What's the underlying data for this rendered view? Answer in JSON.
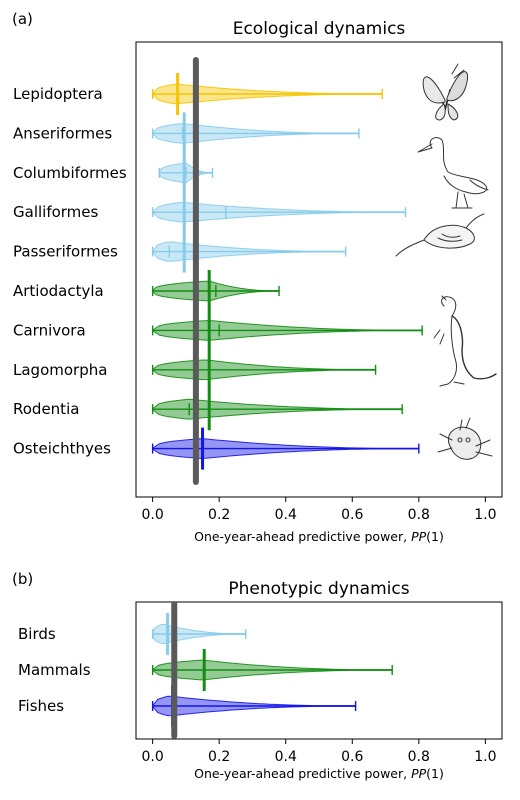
{
  "colors": {
    "yellow": "#f5c400",
    "lightblue": "#87cbea",
    "green": "#128c12",
    "blue": "#1414e6",
    "reference": "#5a5a5a"
  },
  "chart_data": [
    {
      "panel": "(a)",
      "type": "violin",
      "title": "Ecological dynamics",
      "xlabel": "One-year-ahead predictive power,",
      "xlabel_symbol": "PP(1)",
      "xlim": [
        -0.05,
        1.05
      ],
      "xticks": [
        0.0,
        0.2,
        0.4,
        0.6,
        0.8,
        1.0
      ],
      "xtick_labels": [
        "0.0",
        "0.2",
        "0.4",
        "0.6",
        "0.8",
        "1.0"
      ],
      "reference_line": {
        "x": 0.13,
        "color": "reference"
      },
      "categories": [
        {
          "label": "Lepidoptera",
          "color": "yellow",
          "min": 0.0,
          "max": 0.69,
          "median": 0.07,
          "mean": 0.075,
          "group_mean": 0.075,
          "group": "Lepidoptera"
        },
        {
          "label": "Anseriformes",
          "color": "lightblue",
          "min": 0.0,
          "max": 0.62,
          "median": 0.09,
          "mean": 0.09,
          "group_mean": 0.095,
          "group": "Birds"
        },
        {
          "label": "Columbiformes",
          "color": "lightblue",
          "min": 0.02,
          "max": 0.18,
          "median": 0.1,
          "mean": 0.1,
          "group_mean": 0.095,
          "group": "Birds"
        },
        {
          "label": "Galliformes",
          "color": "lightblue",
          "min": 0.0,
          "max": 0.76,
          "median": 0.09,
          "mean": 0.22,
          "group_mean": 0.095,
          "group": "Birds"
        },
        {
          "label": "Passeriformes",
          "color": "lightblue",
          "min": 0.0,
          "max": 0.58,
          "median": 0.05,
          "mean": 0.05,
          "group_mean": 0.095,
          "group": "Birds"
        },
        {
          "label": "Artiodactyla",
          "color": "green",
          "min": 0.0,
          "max": 0.38,
          "median": 0.17,
          "mean": 0.19,
          "group_mean": 0.17,
          "group": "Mammals"
        },
        {
          "label": "Carnivora",
          "color": "green",
          "min": 0.0,
          "max": 0.81,
          "median": 0.17,
          "mean": 0.2,
          "group_mean": 0.17,
          "group": "Mammals"
        },
        {
          "label": "Lagomorpha",
          "color": "green",
          "min": 0.0,
          "max": 0.67,
          "median": 0.16,
          "mean": 0.17,
          "group_mean": 0.17,
          "group": "Mammals"
        },
        {
          "label": "Rodentia",
          "color": "green",
          "min": 0.0,
          "max": 0.75,
          "median": 0.11,
          "mean": 0.11,
          "group_mean": 0.17,
          "group": "Mammals"
        },
        {
          "label": "Osteichthyes",
          "color": "blue",
          "min": 0.0,
          "max": 0.8,
          "median": 0.15,
          "mean": 0.15,
          "group_mean": 0.15,
          "group": "Fishes"
        }
      ],
      "illustrations": [
        "butterfly-icon",
        "heron-icon",
        "pheasant-icon",
        "weasel-icon",
        "fish-icon"
      ]
    },
    {
      "panel": "(b)",
      "type": "violin",
      "title": "Phenotypic dynamics",
      "xlabel": "One-year-ahead predictive power,",
      "xlabel_symbol": "PP(1)",
      "xlim": [
        -0.05,
        1.05
      ],
      "xticks": [
        0.0,
        0.2,
        0.4,
        0.6,
        0.8,
        1.0
      ],
      "xtick_labels": [
        "0.0",
        "0.2",
        "0.4",
        "0.6",
        "0.8",
        "1.0"
      ],
      "reference_line": {
        "x": 0.065,
        "color": "reference"
      },
      "categories": [
        {
          "label": "Birds",
          "color": "lightblue",
          "min": 0.0,
          "max": 0.28,
          "median": 0.03,
          "mean": 0.045,
          "group_mean": 0.045
        },
        {
          "label": "Mammals",
          "color": "green",
          "min": 0.0,
          "max": 0.72,
          "median": 0.15,
          "mean": 0.155,
          "group_mean": 0.155
        },
        {
          "label": "Fishes",
          "color": "blue",
          "min": 0.0,
          "max": 0.61,
          "median": 0.05,
          "mean": 0.06,
          "group_mean": 0.06
        }
      ]
    }
  ]
}
